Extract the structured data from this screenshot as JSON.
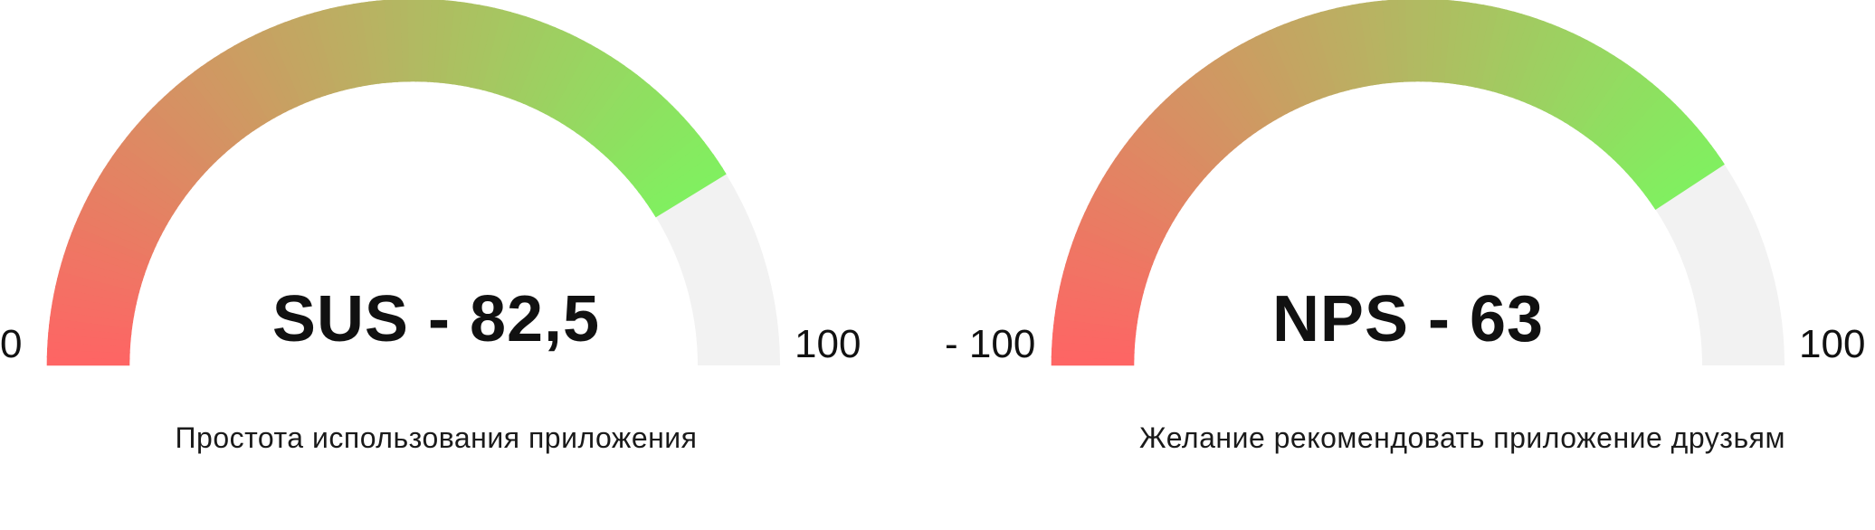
{
  "chart_data": [
    {
      "type": "gauge",
      "value_label": "SUS - 82,5",
      "value": 82.5,
      "min": 0,
      "max": 100,
      "min_label": "0",
      "max_label": "100",
      "caption": "Простота использования приложения",
      "colors": {
        "start": "#ff6464",
        "end": "#80f060",
        "track": "#f2f2f2"
      }
    },
    {
      "type": "gauge",
      "value_label": "NPS - 63",
      "value": 63,
      "min": -100,
      "max": 100,
      "min_label": "- 100",
      "max_label": "100",
      "caption": "Желание рекомендовать приложение друзьям",
      "colors": {
        "start": "#ff6464",
        "end": "#80f060",
        "track": "#f2f2f2"
      }
    }
  ]
}
